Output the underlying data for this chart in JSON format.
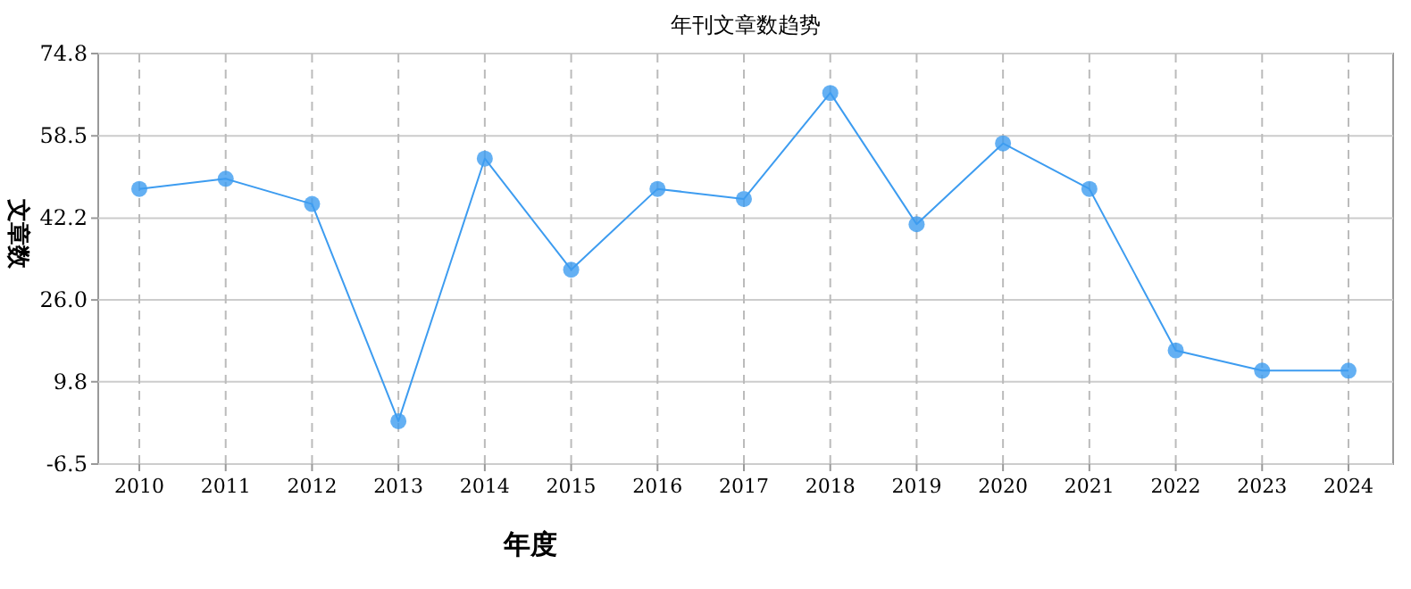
{
  "chart_data": {
    "type": "line",
    "title": "年刊文章数趋势",
    "xlabel": "年度",
    "ylabel": "文章数",
    "categories": [
      "2010",
      "2011",
      "2012",
      "2013",
      "2014",
      "2015",
      "2016",
      "2017",
      "2018",
      "2019",
      "2020",
      "2021",
      "2022",
      "2023",
      "2024"
    ],
    "series": [
      {
        "color": "#3d9cf0",
        "values": [
          48,
          50,
          45,
          2,
          54,
          32,
          48,
          46,
          67,
          41,
          57,
          48,
          16,
          12,
          12
        ]
      }
    ],
    "ylim": [
      -6.5,
      74.8
    ],
    "yticks": [
      -6.5,
      9.8,
      {
        "value": 26,
        "label": "26.0"
      },
      42.2,
      58.5,
      74.8
    ],
    "grid": true,
    "marker": "circle",
    "line_style": "solid"
  }
}
